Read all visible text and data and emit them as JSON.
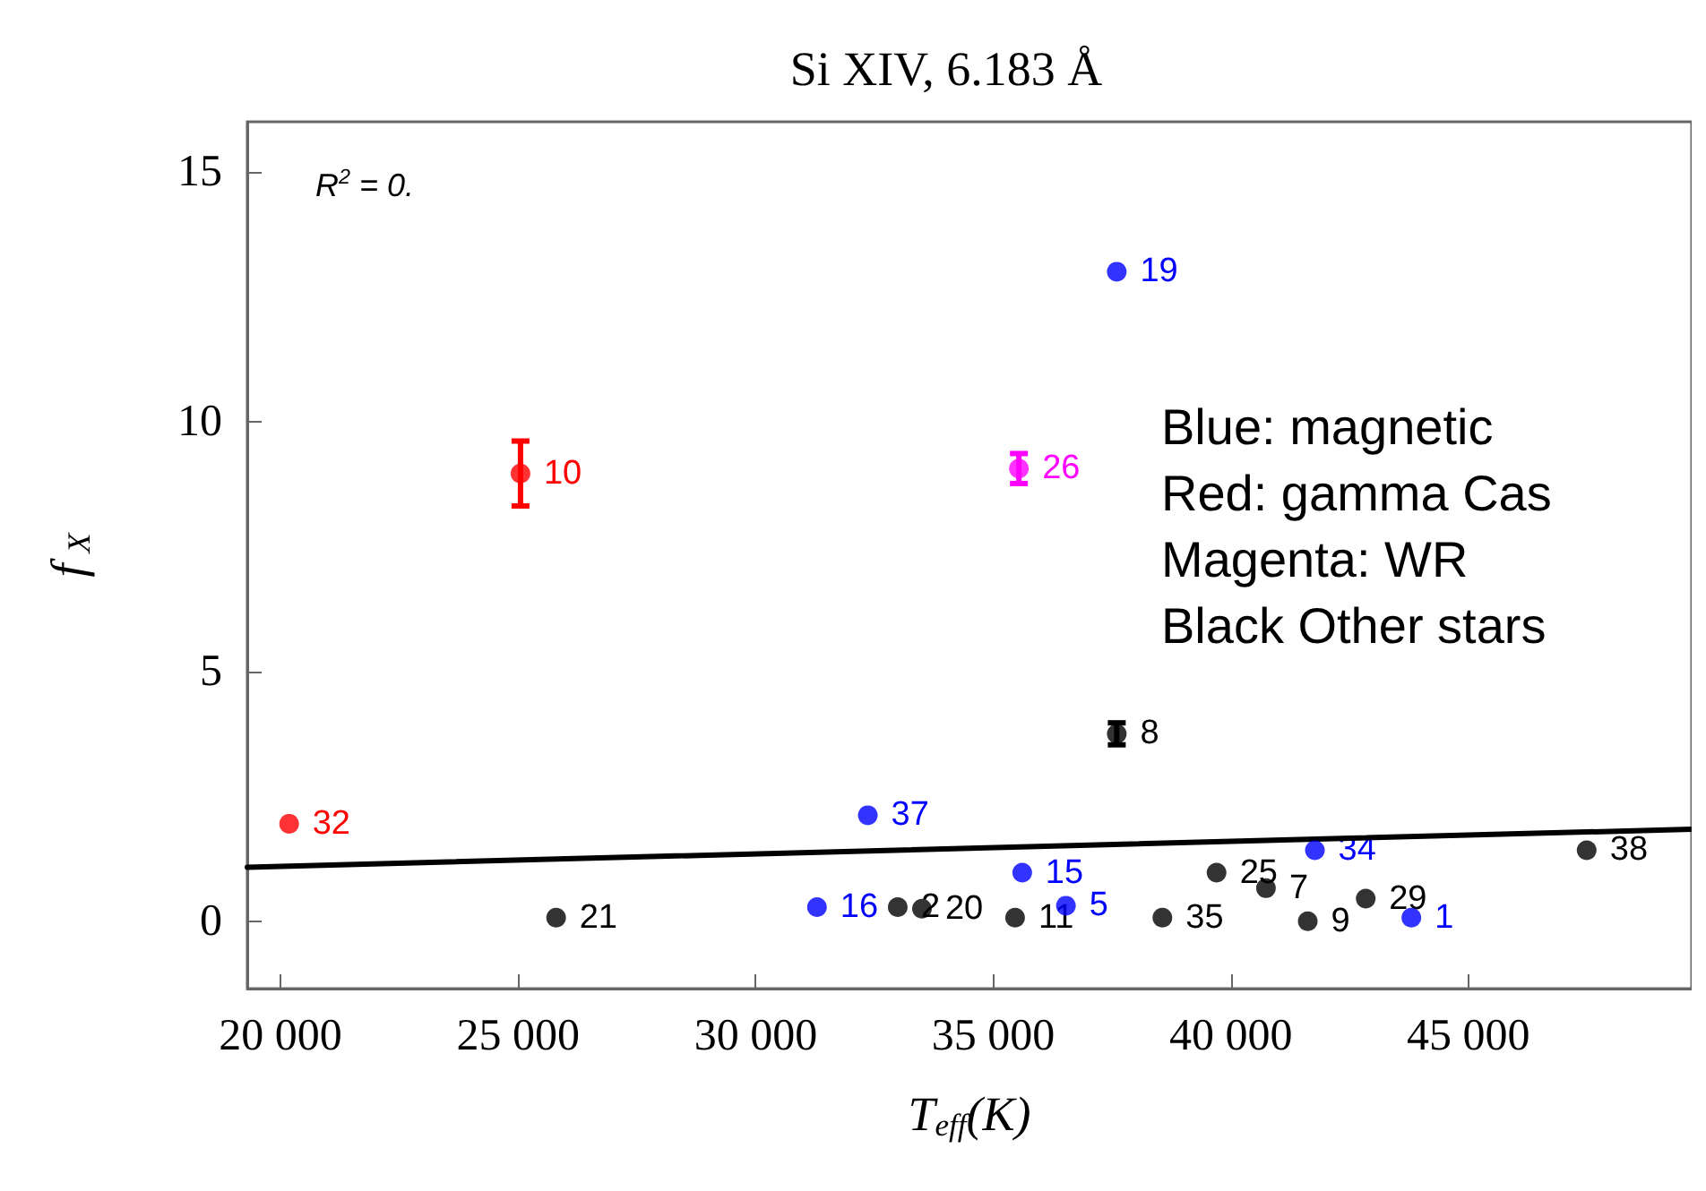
{
  "chart_data": {
    "type": "scatter",
    "title": "Si XIV, 6.183 Å",
    "xlabel": "T$_{eff}$(K)",
    "ylabel": "f$_{X}$",
    "annotations": [
      "R$^{2}$ = 0.",
      "Blue: magnetic\nRed: gamma Cas\nMagenta: WR\nBlack Other stars",
      {
        "text": "16",
        "x": 31290,
        "y": 0.28
      },
      {
        "text": "37",
        "x": 32360,
        "y": 2.12
      },
      {
        "text": "15",
        "x": 35610,
        "y": 0.97
      },
      {
        "text": "5",
        "x": 36530,
        "y": 0.31
      },
      {
        "text": "19",
        "x": 37600,
        "y": 13.0
      },
      {
        "text": "34",
        "x": 41770,
        "y": 1.42
      },
      {
        "text": "1",
        "x": 43800,
        "y": 0.07
      },
      {
        "text": "32",
        "x": 20180,
        "y": 1.95
      },
      {
        "text": "10",
        "x": 25050,
        "y": 8.96
      },
      {
        "text": "26",
        "x": 35540,
        "y": 9.06
      },
      {
        "text": "21",
        "x": 25800,
        "y": 0.07
      },
      {
        "text": "2",
        "x": 32990,
        "y": 0.28
      },
      {
        "text": "20",
        "x": 33500,
        "y": 0.25
      },
      {
        "text": "11",
        "x": 35460,
        "y": 0.07
      },
      {
        "text": "8",
        "x": 37600,
        "y": 3.75
      },
      {
        "text": "35",
        "x": 38560,
        "y": 0.07
      },
      {
        "text": "25",
        "x": 39700,
        "y": 0.97
      },
      {
        "text": "7",
        "x": 40740,
        "y": 0.66
      },
      {
        "text": "9",
        "x": 41620,
        "y": 0.0
      },
      {
        "text": "29",
        "x": 42840,
        "y": 0.45
      },
      {
        "text": "38",
        "x": 47490,
        "y": 1.42
      }
    ],
    "xlim": [
      19300,
      49700
    ],
    "ylim": [
      -1.35,
      16
    ],
    "xticks": [
      {
        "value": 20000,
        "label": "20 000"
      },
      {
        "value": 25000,
        "label": "25 000"
      },
      {
        "value": 30000,
        "label": "30 000"
      },
      {
        "value": 35000,
        "label": "35 000"
      },
      {
        "value": 40000,
        "label": "40 000"
      },
      {
        "value": 45000,
        "label": "45 000"
      }
    ],
    "yticks": [
      0,
      5,
      10,
      15
    ],
    "grid": false,
    "marker": "circle",
    "series": [
      {
        "color": "#0000ff",
        "x": [
          31290,
          32360,
          35610,
          36530,
          37600,
          41770,
          43800
        ],
        "values": [
          0.28,
          2.12,
          0.97,
          0.31,
          13.0,
          1.42,
          0.07
        ]
      },
      {
        "color": "#ff0000",
        "x": [
          20180,
          25050
        ],
        "values": [
          1.95,
          8.96
        ],
        "errors": [
          null,
          0.65
        ]
      },
      {
        "color": "#ff00ff",
        "x": [
          35540
        ],
        "values": [
          9.06
        ],
        "errors": [
          0.3
        ]
      },
      {
        "color": "#000000",
        "x": [
          25800,
          32990,
          33500,
          35460,
          37600,
          38560,
          39700,
          40740,
          41620,
          42840,
          47490
        ],
        "values": [
          0.07,
          0.28,
          0.25,
          0.07,
          3.75,
          0.07,
          0.97,
          0.66,
          0.0,
          0.45,
          1.42
        ],
        "errors": [
          null,
          null,
          null,
          null,
          0.22,
          null,
          null,
          null,
          null,
          null,
          null
        ]
      },
      {
        "type": "line",
        "color": "#000000",
        "x": [
          19300,
          49700
        ],
        "values": [
          1.08,
          1.84
        ],
        "marker": "none",
        "line_style": "solid"
      }
    ]
  }
}
